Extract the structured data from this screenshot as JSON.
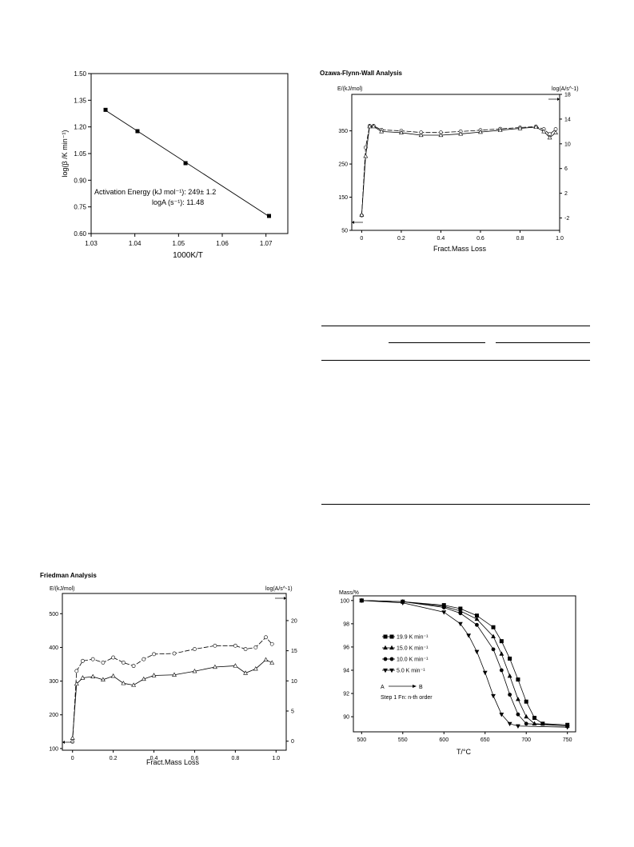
{
  "chart_data": [
    {
      "id": "arrhenius",
      "type": "scatter",
      "xlabel": "1000K/T",
      "ylabel": "log(β /K min⁻¹)",
      "xlim": [
        1.03,
        1.075
      ],
      "ylim": [
        0.6,
        1.5
      ],
      "xticks": [
        "1.03",
        "1.04",
        "1.05",
        "1.06",
        "1.07"
      ],
      "yticks": [
        "0.60",
        "0.75",
        "0.90",
        "1.05",
        "1.20",
        "1.35",
        "1.50"
      ],
      "x": [
        1.0333,
        1.0406,
        1.0516,
        1.0707
      ],
      "y": [
        1.296,
        1.176,
        0.996,
        0.699
      ],
      "annotations": [
        "Activation Energy (kJ mol⁻¹): 249± 1.2",
        "logA (s⁻¹): 11.48"
      ],
      "grid": false
    },
    {
      "id": "ozawa",
      "type": "line",
      "title": "Ozawa-Flynn-Wall Analysis",
      "left_axis_label": "E/(kJ/mol)",
      "right_axis_label": "log(A/s^-1)",
      "xlabel": "Fract.Mass Loss",
      "xlim": [
        -0.05,
        1.0
      ],
      "ylim_left": [
        50,
        460
      ],
      "ylim_right": [
        -4,
        18
      ],
      "xticks": [
        "0",
        "0.2",
        "0.4",
        "0.6",
        "0.8",
        "1.0"
      ],
      "yticks_left": [
        "50",
        "150",
        "250",
        "350"
      ],
      "yticks_right": [
        "-2",
        "2",
        "6",
        "10",
        "14",
        "18"
      ],
      "series": [
        {
          "axis": "left",
          "x": [
            0.0,
            0.02,
            0.04,
            0.06,
            0.1,
            0.2,
            0.3,
            0.4,
            0.5,
            0.6,
            0.7,
            0.8,
            0.88,
            0.92,
            0.95,
            0.98
          ],
          "y": [
            95,
            300,
            365,
            365,
            353,
            350,
            345,
            345,
            348,
            352,
            356,
            360,
            363,
            355,
            340,
            355
          ]
        },
        {
          "axis": "right",
          "x": [
            0.0,
            0.02,
            0.04,
            0.06,
            0.1,
            0.2,
            0.3,
            0.4,
            0.5,
            0.6,
            0.7,
            0.8,
            0.88,
            0.92,
            0.95,
            0.98
          ],
          "y": [
            -1.5,
            8,
            12.8,
            12.8,
            12.0,
            11.8,
            11.4,
            11.4,
            11.6,
            11.9,
            12.2,
            12.5,
            12.7,
            12.0,
            11.0,
            11.8
          ]
        }
      ]
    },
    {
      "id": "friedman",
      "type": "line",
      "title": "Friedman Analysis",
      "left_axis_label": "E/(kJ/mol)",
      "right_axis_label": "log(A/s^-1)",
      "xlabel": "Fract.Mass Loss",
      "xlim": [
        -0.05,
        1.05
      ],
      "ylim_left": [
        95,
        560
      ],
      "ylim_right": [
        -1.5,
        24.5
      ],
      "xticks": [
        "0",
        "0.2",
        "0.4",
        "0.6",
        "0.8",
        "1.0"
      ],
      "yticks_left": [
        "100",
        "200",
        "300",
        "400",
        "500"
      ],
      "yticks_right": [
        "0",
        "5",
        "10",
        "15",
        "20"
      ],
      "series": [
        {
          "axis": "left",
          "x": [
            0.0,
            0.02,
            0.05,
            0.1,
            0.15,
            0.2,
            0.25,
            0.3,
            0.35,
            0.4,
            0.5,
            0.6,
            0.7,
            0.8,
            0.85,
            0.9,
            0.95,
            0.98
          ],
          "y": [
            120,
            330,
            360,
            365,
            355,
            370,
            355,
            345,
            365,
            380,
            382,
            395,
            405,
            405,
            395,
            400,
            430,
            410
          ]
        },
        {
          "axis": "right",
          "x": [
            0.0,
            0.02,
            0.05,
            0.1,
            0.15,
            0.2,
            0.25,
            0.3,
            0.35,
            0.4,
            0.5,
            0.6,
            0.7,
            0.8,
            0.85,
            0.9,
            0.95,
            0.98
          ],
          "y": [
            0.5,
            9.5,
            10.5,
            10.7,
            10.2,
            10.8,
            9.6,
            9.3,
            10.3,
            10.9,
            11.0,
            11.6,
            12.3,
            12.5,
            11.3,
            12.0,
            13.5,
            13.0
          ]
        }
      ]
    },
    {
      "id": "tga",
      "type": "line",
      "ylabel": "Mass/%",
      "xlabel": "T/°C",
      "xlim": [
        490,
        760
      ],
      "ylim": [
        88.7,
        100.4
      ],
      "xticks": [
        "500",
        "550",
        "600",
        "650",
        "700",
        "750"
      ],
      "yticks": [
        "90",
        "92",
        "94",
        "96",
        "98",
        "100"
      ],
      "series": [
        {
          "name": "19.9 K min⁻¹",
          "marker": "square",
          "x": [
            500,
            550,
            600,
            620,
            640,
            660,
            670,
            680,
            690,
            700,
            710,
            720,
            750
          ],
          "y": [
            100,
            99.9,
            99.6,
            99.3,
            98.7,
            97.7,
            96.5,
            95.0,
            93.2,
            91.3,
            89.9,
            89.4,
            89.3
          ]
        },
        {
          "name": "15.0 K min⁻¹",
          "marker": "triangle",
          "x": [
            500,
            550,
            600,
            620,
            640,
            660,
            670,
            680,
            690,
            700,
            710,
            750
          ],
          "y": [
            100,
            99.9,
            99.5,
            99.1,
            98.4,
            96.9,
            95.4,
            93.5,
            91.5,
            90.0,
            89.4,
            89.2
          ]
        },
        {
          "name": "10.0 K min⁻¹",
          "marker": "circle",
          "x": [
            500,
            550,
            600,
            620,
            640,
            660,
            670,
            680,
            690,
            700,
            750
          ],
          "y": [
            100,
            99.9,
            99.4,
            98.9,
            97.9,
            95.8,
            94.0,
            91.9,
            90.2,
            89.4,
            89.2
          ]
        },
        {
          "name": "5.0 K min⁻¹",
          "marker": "triangle-down",
          "x": [
            500,
            550,
            600,
            620,
            630,
            640,
            650,
            660,
            670,
            680,
            690,
            750
          ],
          "y": [
            100,
            99.8,
            99.0,
            98.0,
            97.0,
            95.6,
            93.8,
            91.8,
            90.2,
            89.4,
            89.2,
            89.1
          ]
        }
      ],
      "annotations": [
        "A",
        "B",
        "Step 1 Fn: n-th order"
      ]
    }
  ]
}
